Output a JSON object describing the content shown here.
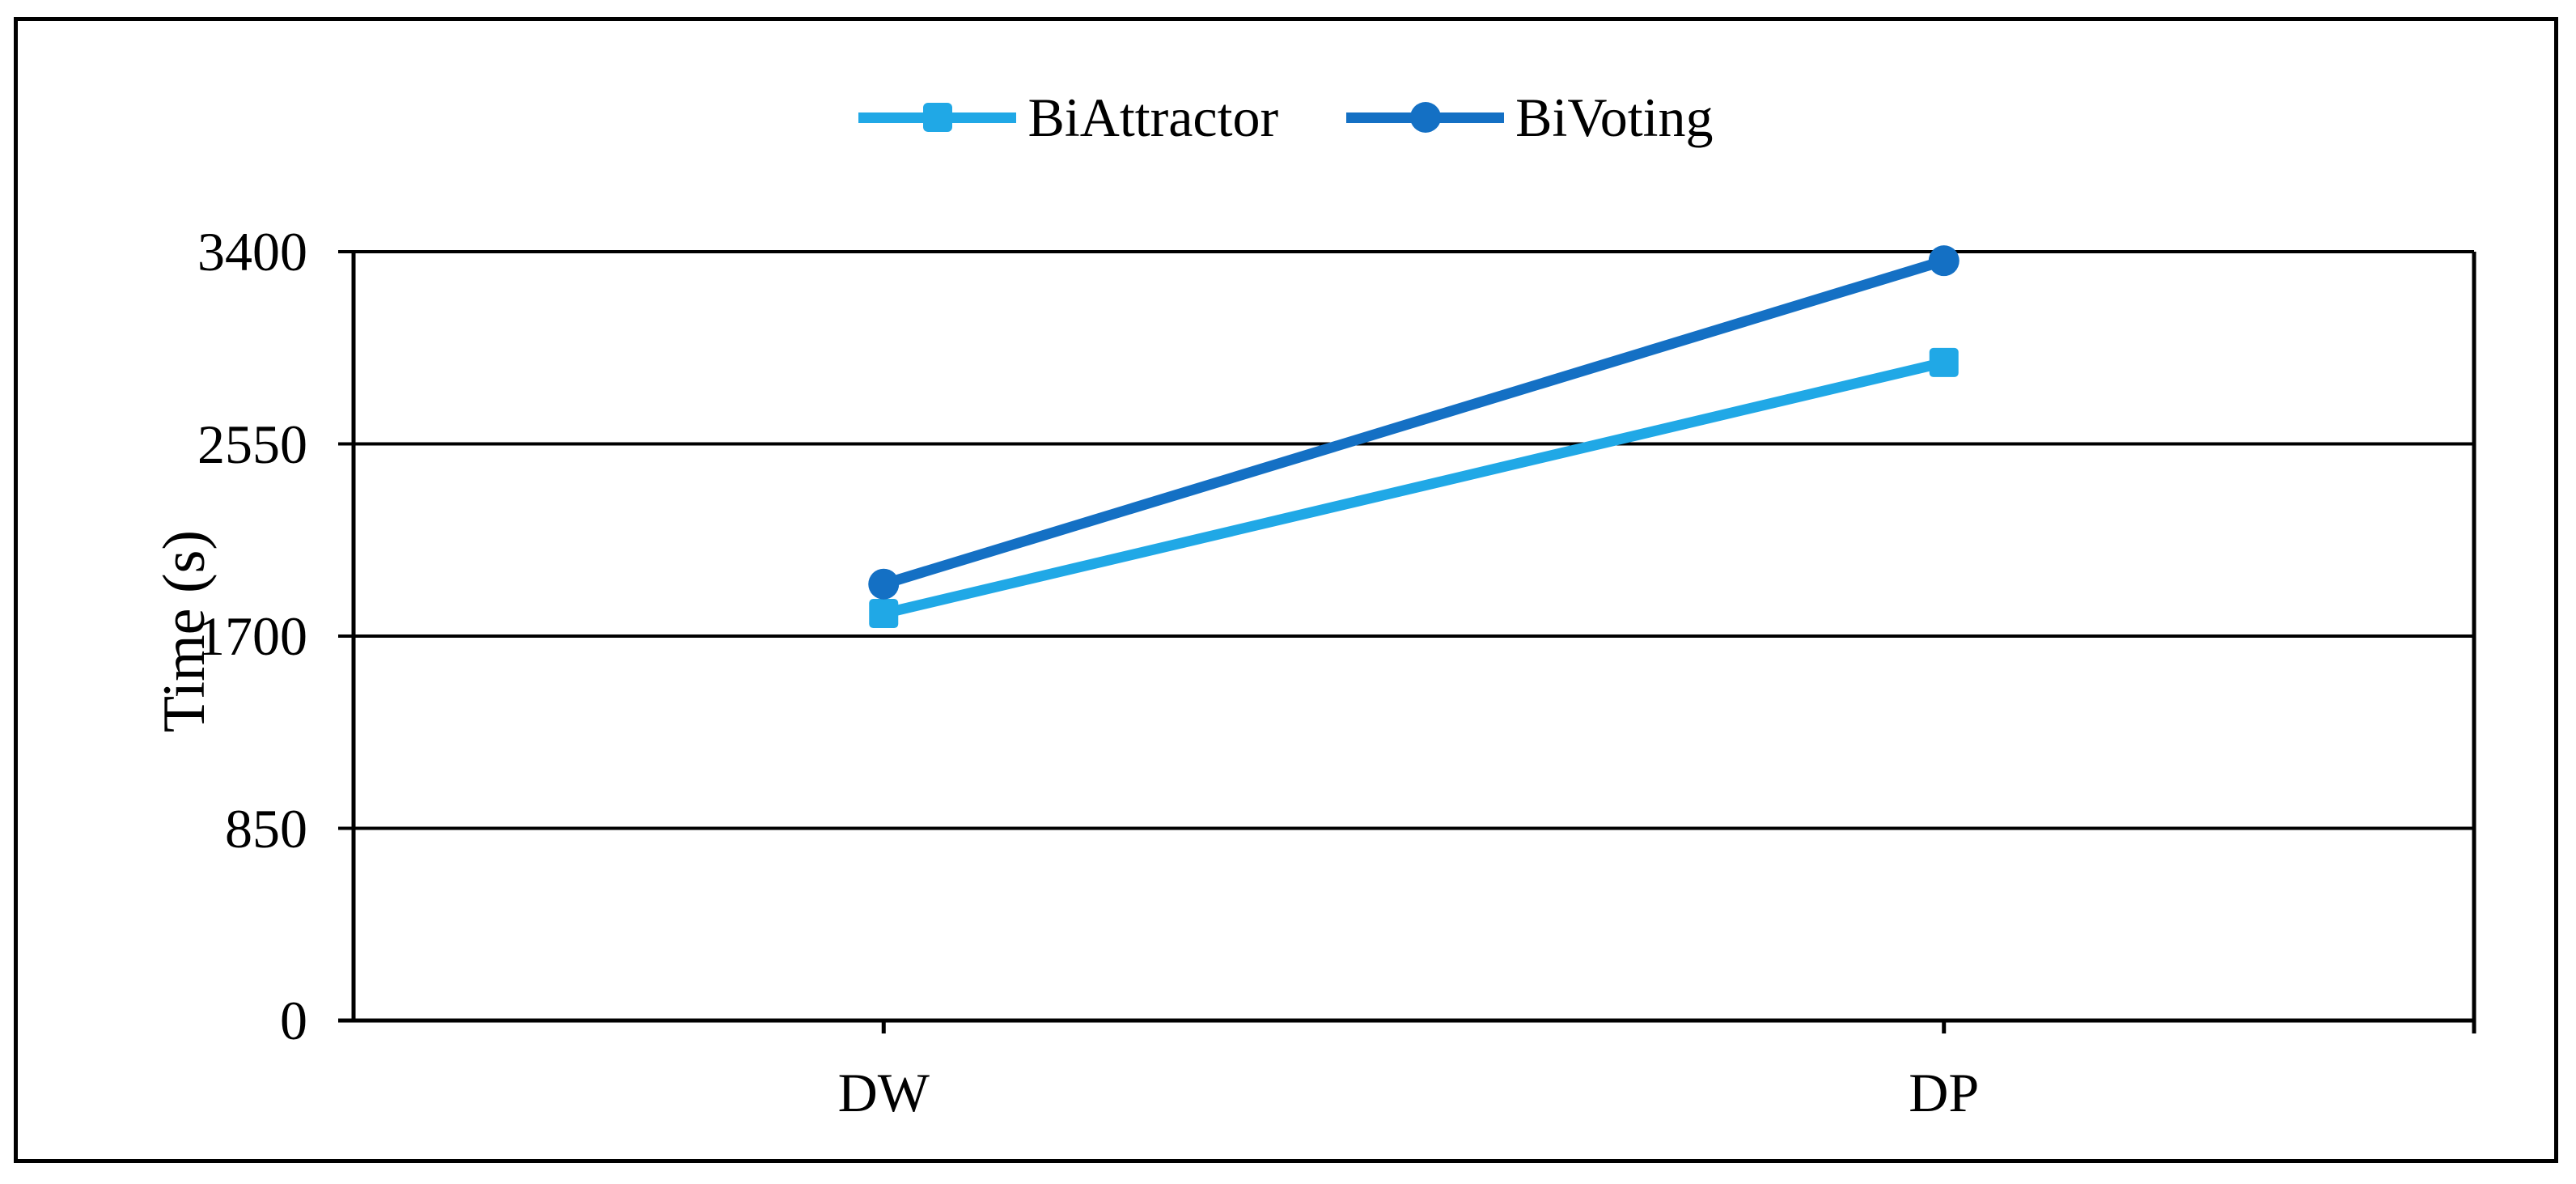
{
  "figure": {
    "background": "#ffffff",
    "border_color": "#000000",
    "text_color": "#000000"
  },
  "legend": {
    "position": "top-center",
    "items": [
      {
        "label": "BiAttractor",
        "marker": "square",
        "color": "#20A8E6"
      },
      {
        "label": "BiVoting",
        "marker": "circle",
        "color": "#1470C4"
      }
    ]
  },
  "chart_data": {
    "type": "line",
    "categories": [
      "DW",
      "DP"
    ],
    "series": [
      {
        "name": "BiAttractor",
        "marker": "square",
        "color": "#20A8E6",
        "values": [
          1800,
          2910
        ]
      },
      {
        "name": "BiVoting",
        "marker": "circle",
        "color": "#1470C4",
        "values": [
          1930,
          3360
        ]
      }
    ],
    "title": "",
    "xlabel": "",
    "ylabel": "Time (s)",
    "yticks": [
      0,
      850,
      1700,
      2550,
      3400
    ],
    "ylim": [
      0,
      3400
    ],
    "grid": true,
    "gridline_color": "#000000",
    "legend_position": "top"
  }
}
